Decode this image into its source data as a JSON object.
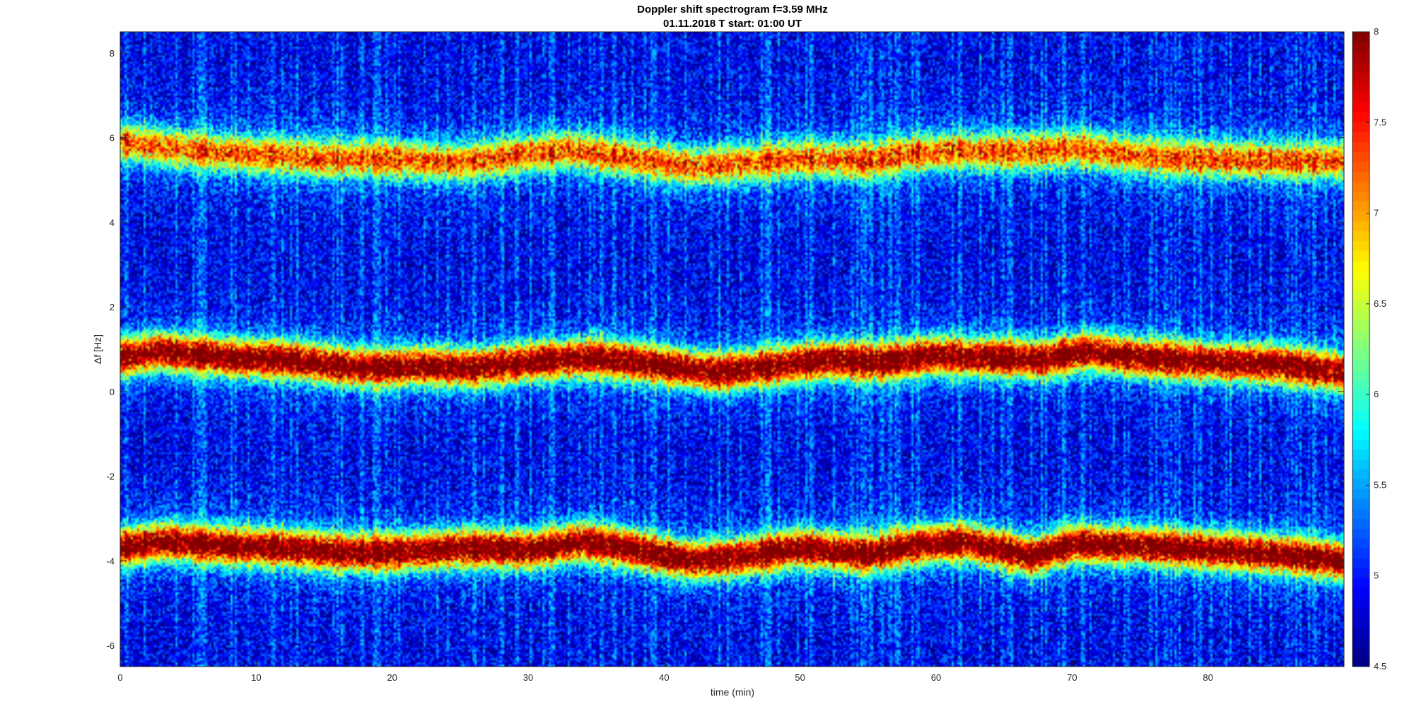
{
  "chart_data": {
    "type": "heatmap",
    "title": "Doppler shift spectrogram f=3.59 MHz",
    "subtitle": "01.11.2018   T start: 01:00 UT",
    "xlabel": "time (min)",
    "ylabel": "Δf [Hz]",
    "xlim": [
      0,
      90
    ],
    "ylim": [
      -6.5,
      8.5
    ],
    "x_ticks": [
      "0",
      "10",
      "20",
      "30",
      "40",
      "50",
      "60",
      "70",
      "80"
    ],
    "y_ticks": [
      "-6",
      "-4",
      "-2",
      "0",
      "2",
      "4",
      "6",
      "8"
    ],
    "colorbar": {
      "range": [
        4.5,
        8
      ],
      "ticks": [
        "4.5",
        "5",
        "5.5",
        "6",
        "6.5",
        "7",
        "7.5",
        "8"
      ],
      "colormap": "jet"
    },
    "background_level": 4.8,
    "bands": [
      {
        "x": [
          0,
          5,
          10,
          15,
          20,
          25,
          30,
          33,
          38,
          42,
          46,
          50,
          55,
          58,
          62,
          66,
          70,
          75,
          80,
          85,
          90
        ],
        "y": [
          5.9,
          5.7,
          5.6,
          5.5,
          5.5,
          5.4,
          5.6,
          5.7,
          5.5,
          5.3,
          5.4,
          5.5,
          5.45,
          5.6,
          5.7,
          5.65,
          5.75,
          5.55,
          5.5,
          5.45,
          5.45
        ],
        "peak": 6.9
      },
      {
        "x": [
          0,
          3,
          8,
          12,
          18,
          22,
          26,
          30,
          35,
          40,
          44,
          48,
          52,
          56,
          60,
          64,
          68,
          71,
          75,
          80,
          85,
          90
        ],
        "y": [
          0.8,
          0.95,
          0.8,
          0.75,
          0.55,
          0.6,
          0.55,
          0.7,
          0.8,
          0.6,
          0.45,
          0.6,
          0.75,
          0.7,
          0.85,
          0.8,
          0.75,
          0.95,
          0.8,
          0.7,
          0.65,
          0.45
        ],
        "peak": 7.9
      },
      {
        "x": [
          0,
          3,
          8,
          12,
          16,
          20,
          25,
          30,
          34,
          38,
          42,
          46,
          50,
          55,
          58,
          62,
          67,
          70,
          75,
          80,
          85,
          90
        ],
        "y": [
          -3.7,
          -3.55,
          -3.65,
          -3.7,
          -3.8,
          -3.8,
          -3.7,
          -3.75,
          -3.55,
          -3.75,
          -4.0,
          -3.9,
          -3.7,
          -3.85,
          -3.65,
          -3.55,
          -3.9,
          -3.6,
          -3.65,
          -3.75,
          -3.85,
          -4.0
        ],
        "peak": 7.9
      }
    ],
    "grid": false,
    "legend": "none"
  }
}
